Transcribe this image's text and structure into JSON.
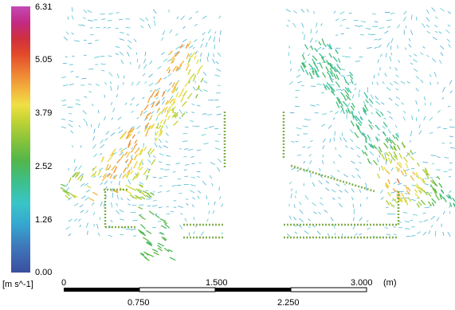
{
  "legend": {
    "ticks": [
      "6.31",
      "5.05",
      "3.79",
      "2.52",
      "1.26",
      "0.00"
    ],
    "units": "[m s^-1]",
    "range": [
      0.0,
      6.31
    ]
  },
  "scale_bar": {
    "top_labels": [
      "0",
      "1.500",
      "3.000"
    ],
    "bottom_labels": [
      "0.750",
      "2.250"
    ],
    "unit": "(m)"
  }
}
